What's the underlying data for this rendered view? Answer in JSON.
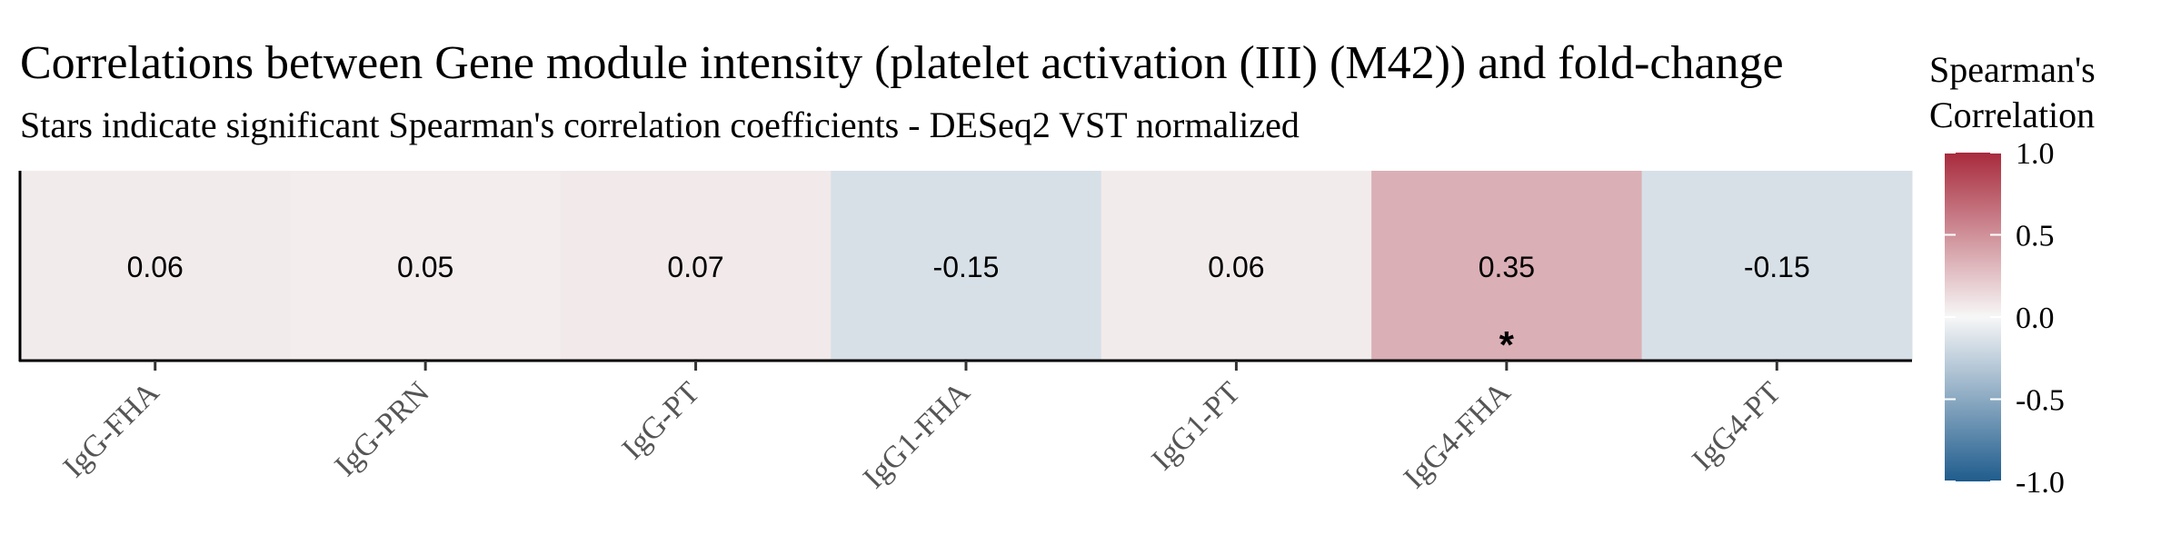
{
  "chart_data": {
    "type": "heatmap",
    "title": "Correlations between Gene module intensity (platelet activation (III) (M42)) and fold-change",
    "subtitle": "Stars indicate significant Spearman's correlation coefficients - DESeq2 VST normalized",
    "categories": [
      "IgG-FHA",
      "IgG-PRN",
      "IgG-PT",
      "IgG1-FHA",
      "IgG1-PT",
      "IgG4-FHA",
      "IgG4-PT"
    ],
    "values": [
      0.06,
      0.05,
      0.07,
      -0.15,
      0.06,
      0.35,
      -0.15
    ],
    "value_labels": [
      "0.06",
      "0.05",
      "0.07",
      "-0.15",
      "0.06",
      "0.35",
      "-0.15"
    ],
    "significant": [
      false,
      false,
      false,
      false,
      false,
      true,
      false
    ],
    "star_symbol": "*",
    "legend": {
      "title_line1": "Spearman's",
      "title_line2": "Correlation",
      "ticks": [
        1.0,
        0.5,
        0.0,
        -0.5,
        -1.0
      ],
      "tick_labels": [
        "1.0",
        "0.5",
        "0.0",
        "-0.5",
        "-1.0"
      ],
      "range": [
        -1,
        1
      ],
      "colors": {
        "low": "#1f5c8d",
        "mid": "#f7f7f7",
        "high": "#a82a3c"
      },
      "placement": "right"
    },
    "xlabel": "",
    "ylabel": ""
  }
}
